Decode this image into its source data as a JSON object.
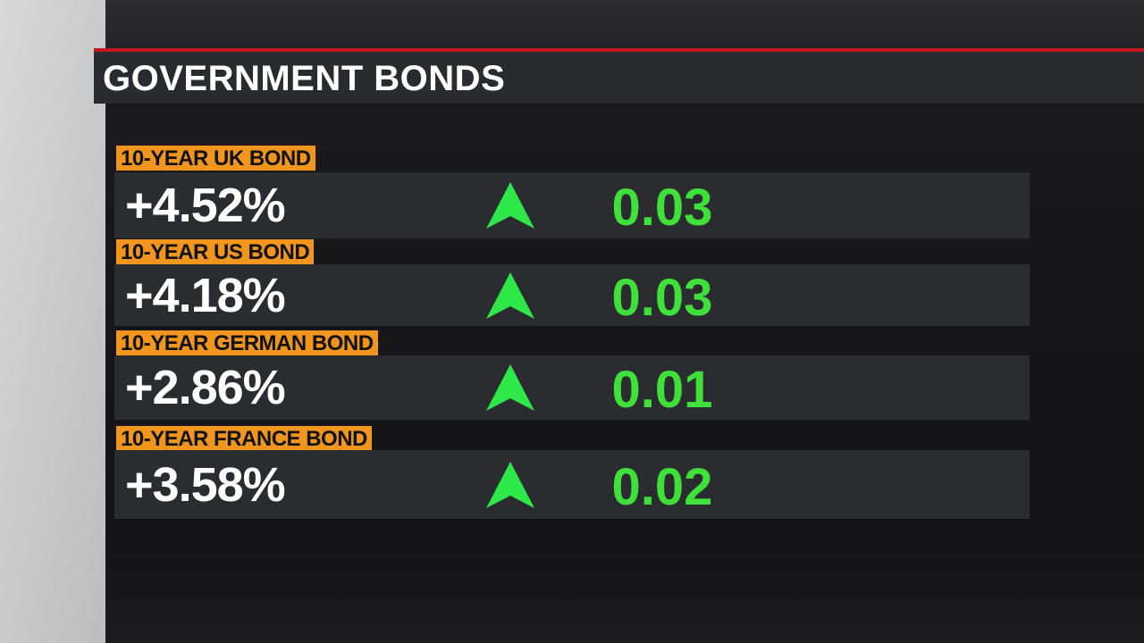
{
  "header": {
    "title": "GOVERNMENT BONDS"
  },
  "rows": [
    {
      "label": "10-YEAR UK BOND",
      "value": "+4.52%",
      "change": "0.03"
    },
    {
      "label": "10-YEAR US BOND",
      "value": "+4.18%",
      "change": "0.03"
    },
    {
      "label": "10-YEAR GERMAN BOND",
      "value": "+2.86%",
      "change": "0.01"
    },
    {
      "label": "10-YEAR FRANCE BOND",
      "value": "+3.58%",
      "change": "0.02"
    }
  ]
}
